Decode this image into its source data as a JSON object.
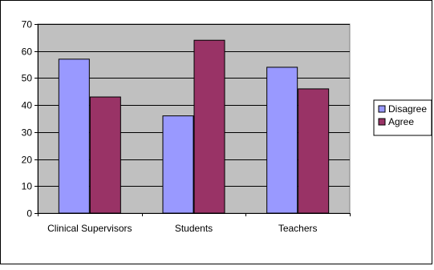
{
  "chart_data": {
    "type": "bar",
    "categories": [
      "Clinical Supervisors",
      "Students",
      "Teachers"
    ],
    "series": [
      {
        "name": "Disagree",
        "values": [
          57,
          36,
          54
        ],
        "color": "#9999ff"
      },
      {
        "name": "Agree",
        "values": [
          43,
          64,
          46
        ],
        "color": "#993366"
      }
    ],
    "yticks": [
      0,
      10,
      20,
      30,
      40,
      50,
      60,
      70
    ],
    "ylim": [
      0,
      70
    ],
    "grid": true,
    "legend": "right",
    "plot_background": "#c0c0c0"
  }
}
